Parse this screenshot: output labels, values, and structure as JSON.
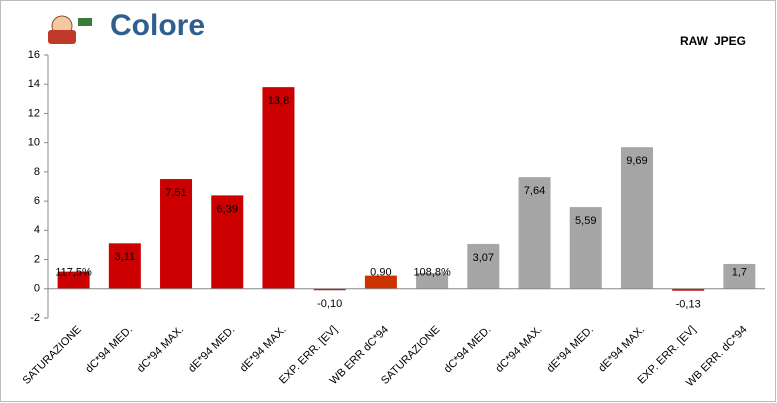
{
  "chart_data": {
    "type": "bar",
    "title": "Colore",
    "legend": [
      {
        "name": "RAW",
        "color": "#c00000"
      },
      {
        "name": "JPEG",
        "color": "#a6a6a6"
      }
    ],
    "categories": [
      "SATURAZIONE",
      "dC*94 MED.",
      "dC*94 MAX.",
      "dE*94 MED.",
      "dE*94 MAX.",
      "EXP. ERR. [EV]",
      "WB ERR dC*94",
      "SATURAZIONE",
      "dC*94 MED.",
      "dC*94 MAX.",
      "dE*94 MED.",
      "dE*94 MAX.",
      "EXP. ERR. [EV]",
      "WB ERR. dC*94"
    ],
    "values": [
      1.175,
      3.11,
      7.51,
      6.39,
      13.8,
      -0.1,
      0.9,
      1.088,
      3.07,
      7.64,
      5.59,
      9.69,
      -0.13,
      1.7
    ],
    "value_labels": [
      "117,5%",
      "3,11",
      "7,51",
      "6,39",
      "13,8",
      "-0,10",
      "0,90",
      "108,8%",
      "3,07",
      "7,64",
      "5,59",
      "9,69",
      "-0,13",
      "1,7"
    ],
    "colors": [
      "#cc0000",
      "#cc0000",
      "#cc0000",
      "#cc0000",
      "#cc0000",
      "#cc0000",
      "#cc3300",
      "#a6a6a6",
      "#a6a6a6",
      "#a6a6a6",
      "#a6a6a6",
      "#a6a6a6",
      "#cc0000",
      "#a6a6a6"
    ],
    "ylim": [
      -2,
      16
    ],
    "yticks": [
      -2,
      0,
      2,
      4,
      6,
      8,
      10,
      12,
      14,
      16
    ]
  }
}
